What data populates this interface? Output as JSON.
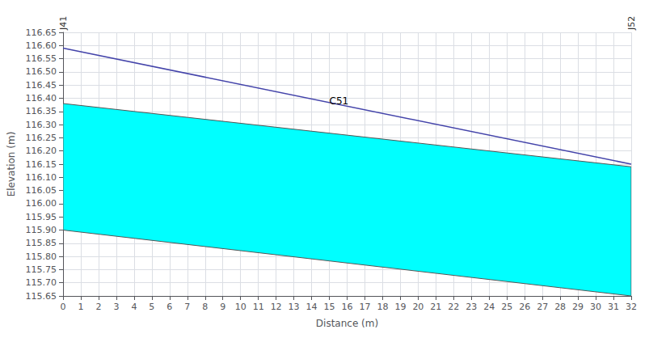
{
  "chart_data": {
    "type": "line",
    "xlabel": "Distance (m)",
    "ylabel": "Elevation (m)",
    "x": [
      0,
      32
    ],
    "series": [
      {
        "type": "area",
        "color": "#00FFFF",
        "values": [
          116.38,
          116.14
        ],
        "bottom": [
          115.9,
          115.65
        ]
      },
      {
        "type": "line",
        "color": "#4444AA",
        "values": [
          116.59,
          116.15
        ]
      }
    ],
    "annotations": [
      {
        "text": "C51",
        "x": 15,
        "y": 116.37
      }
    ],
    "node_labels": [
      {
        "text": "J41",
        "x": 0
      },
      {
        "text": "J52",
        "x": 32
      }
    ],
    "xlim": [
      0,
      32
    ],
    "xticks": [
      0,
      1,
      2,
      3,
      4,
      5,
      6,
      7,
      8,
      9,
      10,
      11,
      12,
      13,
      14,
      15,
      16,
      17,
      18,
      19,
      20,
      21,
      22,
      23,
      24,
      25,
      26,
      27,
      28,
      29,
      30,
      31,
      32
    ],
    "ylim": [
      115.65,
      116.65
    ],
    "yticks": [
      115.65,
      {
        "value": 115.7,
        "label": "115.70"
      },
      115.75,
      {
        "value": 115.8,
        "label": "115.80"
      },
      115.85,
      {
        "value": 115.9,
        "label": "115.90"
      },
      115.95,
      {
        "value": 116,
        "label": "116.00"
      },
      116.05,
      {
        "value": 116.1,
        "label": "116.10"
      },
      116.15,
      {
        "value": 116.2,
        "label": "116.20"
      },
      116.25,
      {
        "value": 116.3,
        "label": "116.30"
      },
      116.35,
      {
        "value": 116.4,
        "label": "116.40"
      },
      116.45,
      {
        "value": 116.5,
        "label": "116.50"
      },
      116.55,
      {
        "value": 116.6,
        "label": "116.60"
      },
      116.65
    ],
    "grid": true
  }
}
